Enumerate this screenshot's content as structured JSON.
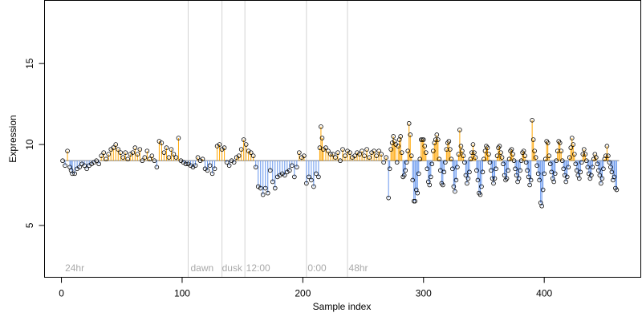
{
  "chart_data": {
    "type": "scatter",
    "title": "",
    "xlabel": "Sample index",
    "ylabel": "Expression",
    "xlim": [
      -14,
      480
    ],
    "ylim": [
      1.8,
      18.9
    ],
    "xticks": [
      0,
      100,
      200,
      300,
      400
    ],
    "yticks": [
      5,
      10,
      15
    ],
    "grid": false,
    "legend": "none",
    "colors": {
      "points": "#000000",
      "above": "#ffa500",
      "below": "#6495ed",
      "smooth": "#a9a9a9",
      "vlines": "#d3d3d3",
      "annotation": "#a9a9a9"
    },
    "baseline": 9.0,
    "vlines": [
      105,
      133,
      152,
      203,
      237
    ],
    "annotations": [
      {
        "x": 3,
        "text": "24hr"
      },
      {
        "x": 107,
        "text": "dawn"
      },
      {
        "x": 133,
        "text": "dusk"
      },
      {
        "x": 153,
        "text": "12:00"
      },
      {
        "x": 204,
        "text": "0:00"
      },
      {
        "x": 238,
        "text": "48hr"
      }
    ],
    "x_end": 462,
    "points": [
      [
        1,
        9.0
      ],
      [
        3,
        8.7
      ],
      [
        5,
        9.6
      ],
      [
        7,
        8.6
      ],
      [
        8,
        8.4
      ],
      [
        9,
        8.2
      ],
      [
        11,
        8.2
      ],
      [
        13,
        8.5
      ],
      [
        15,
        8.6
      ],
      [
        17,
        8.8
      ],
      [
        19,
        8.7
      ],
      [
        21,
        8.5
      ],
      [
        23,
        8.7
      ],
      [
        25,
        8.8
      ],
      [
        27,
        8.9
      ],
      [
        29,
        9.0
      ],
      [
        31,
        8.8
      ],
      [
        33,
        9.3
      ],
      [
        35,
        9.5
      ],
      [
        37,
        9.1
      ],
      [
        39,
        9.4
      ],
      [
        41,
        9.7
      ],
      [
        43,
        9.8
      ],
      [
        45,
        10.0
      ],
      [
        47,
        9.7
      ],
      [
        49,
        9.5
      ],
      [
        51,
        9.2
      ],
      [
        53,
        9.5
      ],
      [
        55,
        9.1
      ],
      [
        57,
        9.4
      ],
      [
        59,
        9.5
      ],
      [
        61,
        9.8
      ],
      [
        63,
        9.4
      ],
      [
        65,
        9.7
      ],
      [
        67,
        9.0
      ],
      [
        69,
        9.2
      ],
      [
        71,
        9.6
      ],
      [
        73,
        9.1
      ],
      [
        75,
        9.3
      ],
      [
        77,
        9.0
      ],
      [
        79,
        8.6
      ],
      [
        81,
        10.2
      ],
      [
        83,
        10.1
      ],
      [
        85,
        9.5
      ],
      [
        87,
        9.8
      ],
      [
        89,
        9.2
      ],
      [
        91,
        9.7
      ],
      [
        93,
        9.4
      ],
      [
        95,
        9.2
      ],
      [
        97,
        10.4
      ],
      [
        99,
        9.0
      ],
      [
        101,
        8.9
      ],
      [
        103,
        8.8
      ],
      [
        105,
        8.8
      ],
      [
        107,
        8.7
      ],
      [
        109,
        8.6
      ],
      [
        111,
        8.7
      ],
      [
        113,
        9.2
      ],
      [
        115,
        9.0
      ],
      [
        117,
        9.1
      ],
      [
        119,
        8.5
      ],
      [
        121,
        8.4
      ],
      [
        123,
        8.7
      ],
      [
        125,
        8.2
      ],
      [
        127,
        8.5
      ],
      [
        129,
        9.9
      ],
      [
        131,
        10.0
      ],
      [
        133,
        9.7
      ],
      [
        135,
        9.8
      ],
      [
        137,
        8.9
      ],
      [
        139,
        8.7
      ],
      [
        141,
        9.0
      ],
      [
        143,
        8.9
      ],
      [
        145,
        9.2
      ],
      [
        147,
        9.3
      ],
      [
        149,
        9.7
      ],
      [
        151,
        10.3
      ],
      [
        153,
        10.0
      ],
      [
        155,
        9.6
      ],
      [
        157,
        9.5
      ],
      [
        159,
        9.3
      ],
      [
        161,
        8.6
      ],
      [
        163,
        7.4
      ],
      [
        165,
        7.3
      ],
      [
        167,
        6.9
      ],
      [
        169,
        7.3
      ],
      [
        171,
        7.0
      ],
      [
        173,
        8.4
      ],
      [
        175,
        7.7
      ],
      [
        177,
        7.3
      ],
      [
        179,
        8.0
      ],
      [
        181,
        8.1
      ],
      [
        183,
        8.2
      ],
      [
        185,
        8.1
      ],
      [
        187,
        8.3
      ],
      [
        189,
        8.4
      ],
      [
        191,
        8.7
      ],
      [
        193,
        8.0
      ],
      [
        195,
        8.6
      ],
      [
        197,
        9.5
      ],
      [
        199,
        9.2
      ],
      [
        201,
        9.3
      ],
      [
        203,
        7.6
      ],
      [
        205,
        8.0
      ],
      [
        207,
        7.8
      ],
      [
        209,
        7.4
      ],
      [
        211,
        8.2
      ],
      [
        213,
        8.0
      ],
      [
        214,
        9.8
      ],
      [
        215,
        11.1
      ],
      [
        216,
        10.4
      ],
      [
        217,
        9.7
      ],
      [
        219,
        9.8
      ],
      [
        221,
        9.6
      ],
      [
        223,
        9.4
      ],
      [
        225,
        9.4
      ],
      [
        227,
        9.2
      ],
      [
        229,
        9.5
      ],
      [
        231,
        9.0
      ],
      [
        233,
        9.7
      ],
      [
        235,
        9.3
      ],
      [
        237,
        9.6
      ],
      [
        239,
        9.5
      ],
      [
        241,
        9.2
      ],
      [
        243,
        9.3
      ],
      [
        245,
        9.5
      ],
      [
        247,
        9.4
      ],
      [
        249,
        9.6
      ],
      [
        251,
        9.3
      ],
      [
        253,
        9.7
      ],
      [
        255,
        9.2
      ],
      [
        257,
        9.5
      ],
      [
        259,
        9.6
      ],
      [
        261,
        9.3
      ],
      [
        263,
        9.6
      ],
      [
        265,
        9.4
      ],
      [
        267,
        8.9
      ],
      [
        269,
        9.2
      ],
      [
        271,
        6.7
      ],
      [
        272,
        8.5
      ],
      [
        273,
        9.7
      ],
      [
        274,
        10.1
      ],
      [
        275,
        10.5
      ],
      [
        276,
        10.2
      ],
      [
        277,
        10.0
      ],
      [
        278,
        8.9
      ],
      [
        279,
        9.9
      ],
      [
        280,
        10.3
      ],
      [
        281,
        10.5
      ],
      [
        282,
        9.5
      ],
      [
        283,
        8.0
      ],
      [
        284,
        8.1
      ],
      [
        285,
        8.4
      ],
      [
        286,
        8.9
      ],
      [
        287,
        9.6
      ],
      [
        288,
        11.3
      ],
      [
        289,
        10.6
      ],
      [
        290,
        9.3
      ],
      [
        291,
        7.8
      ],
      [
        292,
        6.5
      ],
      [
        293,
        6.5
      ],
      [
        294,
        7.2
      ],
      [
        295,
        7.0
      ],
      [
        296,
        8.2
      ],
      [
        297,
        9.1
      ],
      [
        298,
        10.3
      ],
      [
        299,
        10.3
      ],
      [
        300,
        10.3
      ],
      [
        301,
        9.9
      ],
      [
        302,
        9.5
      ],
      [
        303,
        8.5
      ],
      [
        304,
        7.7
      ],
      [
        305,
        7.5
      ],
      [
        306,
        8.0
      ],
      [
        307,
        8.8
      ],
      [
        308,
        9.6
      ],
      [
        309,
        10.1
      ],
      [
        310,
        10.3
      ],
      [
        311,
        10.6
      ],
      [
        312,
        10.3
      ],
      [
        313,
        9.1
      ],
      [
        314,
        8.4
      ],
      [
        315,
        7.6
      ],
      [
        316,
        7.5
      ],
      [
        317,
        8.3
      ],
      [
        318,
        8.9
      ],
      [
        319,
        9.7
      ],
      [
        320,
        10.1
      ],
      [
        321,
        10.2
      ],
      [
        322,
        9.7
      ],
      [
        323,
        9.1
      ],
      [
        324,
        8.5
      ],
      [
        325,
        7.4
      ],
      [
        326,
        7.1
      ],
      [
        327,
        7.8
      ],
      [
        328,
        8.6
      ],
      [
        329,
        9.4
      ],
      [
        330,
        10.9
      ],
      [
        331,
        9.9
      ],
      [
        332,
        9.6
      ],
      [
        333,
        9.3
      ],
      [
        334,
        8.9
      ],
      [
        335,
        8.1
      ],
      [
        336,
        7.6
      ],
      [
        337,
        7.9
      ],
      [
        338,
        8.3
      ],
      [
        339,
        9.1
      ],
      [
        340,
        9.5
      ],
      [
        341,
        10.0
      ],
      [
        342,
        9.5
      ],
      [
        343,
        9.2
      ],
      [
        344,
        8.4
      ],
      [
        345,
        7.8
      ],
      [
        346,
        7.0
      ],
      [
        347,
        6.9
      ],
      [
        348,
        7.4
      ],
      [
        349,
        8.3
      ],
      [
        350,
        9.1
      ],
      [
        351,
        9.6
      ],
      [
        352,
        9.9
      ],
      [
        353,
        9.8
      ],
      [
        354,
        9.4
      ],
      [
        355,
        8.9
      ],
      [
        356,
        8.4
      ],
      [
        357,
        7.9
      ],
      [
        358,
        7.6
      ],
      [
        359,
        7.9
      ],
      [
        360,
        8.5
      ],
      [
        361,
        9.3
      ],
      [
        362,
        9.8
      ],
      [
        363,
        9.9
      ],
      [
        364,
        9.5
      ],
      [
        365,
        9.2
      ],
      [
        366,
        8.8
      ],
      [
        367,
        8.1
      ],
      [
        368,
        7.8
      ],
      [
        369,
        7.9
      ],
      [
        370,
        8.4
      ],
      [
        371,
        9.1
      ],
      [
        372,
        9.6
      ],
      [
        373,
        9.7
      ],
      [
        374,
        9.4
      ],
      [
        375,
        9.0
      ],
      [
        376,
        8.5
      ],
      [
        377,
        8.1
      ],
      [
        378,
        7.7
      ],
      [
        379,
        7.9
      ],
      [
        380,
        8.4
      ],
      [
        381,
        9.0
      ],
      [
        382,
        9.5
      ],
      [
        383,
        9.6
      ],
      [
        384,
        9.3
      ],
      [
        385,
        8.9
      ],
      [
        386,
        8.4
      ],
      [
        387,
        8.0
      ],
      [
        388,
        7.5
      ],
      [
        389,
        7.8
      ],
      [
        390,
        11.5
      ],
      [
        391,
        10.3
      ],
      [
        392,
        9.6
      ],
      [
        393,
        9.2
      ],
      [
        394,
        8.7
      ],
      [
        395,
        8.2
      ],
      [
        396,
        7.8
      ],
      [
        397,
        6.4
      ],
      [
        398,
        6.2
      ],
      [
        399,
        7.2
      ],
      [
        400,
        8.2
      ],
      [
        401,
        9.1
      ],
      [
        402,
        10.2
      ],
      [
        403,
        10.1
      ],
      [
        404,
        9.3
      ],
      [
        405,
        8.8
      ],
      [
        406,
        8.3
      ],
      [
        407,
        7.9
      ],
      [
        408,
        7.7
      ],
      [
        409,
        8.2
      ],
      [
        410,
        9.0
      ],
      [
        411,
        9.6
      ],
      [
        412,
        10.2
      ],
      [
        413,
        10.1
      ],
      [
        414,
        9.6
      ],
      [
        415,
        9.0
      ],
      [
        416,
        8.5
      ],
      [
        417,
        8.1
      ],
      [
        418,
        7.7
      ],
      [
        419,
        8.0
      ],
      [
        420,
        8.6
      ],
      [
        421,
        9.2
      ],
      [
        422,
        9.8
      ],
      [
        423,
        10.4
      ],
      [
        424,
        10.0
      ],
      [
        425,
        9.4
      ],
      [
        426,
        8.8
      ],
      [
        427,
        8.4
      ],
      [
        428,
        8.1
      ],
      [
        429,
        7.9
      ],
      [
        430,
        8.3
      ],
      [
        431,
        8.9
      ],
      [
        432,
        9.4
      ],
      [
        433,
        9.7
      ],
      [
        434,
        9.4
      ],
      [
        435,
        9.0
      ],
      [
        436,
        8.6
      ],
      [
        437,
        8.2
      ],
      [
        438,
        7.9
      ],
      [
        439,
        8.1
      ],
      [
        440,
        8.6
      ],
      [
        441,
        9.1
      ],
      [
        442,
        9.4
      ],
      [
        443,
        9.2
      ],
      [
        444,
        8.8
      ],
      [
        445,
        8.4
      ],
      [
        446,
        8.1
      ],
      [
        447,
        7.6
      ],
      [
        448,
        7.9
      ],
      [
        449,
        8.5
      ],
      [
        450,
        9.1
      ],
      [
        451,
        9.3
      ],
      [
        452,
        9.9
      ],
      [
        453,
        9.3
      ],
      [
        454,
        8.9
      ],
      [
        455,
        8.6
      ],
      [
        456,
        8.3
      ],
      [
        457,
        7.8
      ],
      [
        458,
        8.0
      ],
      [
        459,
        7.3
      ],
      [
        460,
        7.2
      ]
    ]
  }
}
